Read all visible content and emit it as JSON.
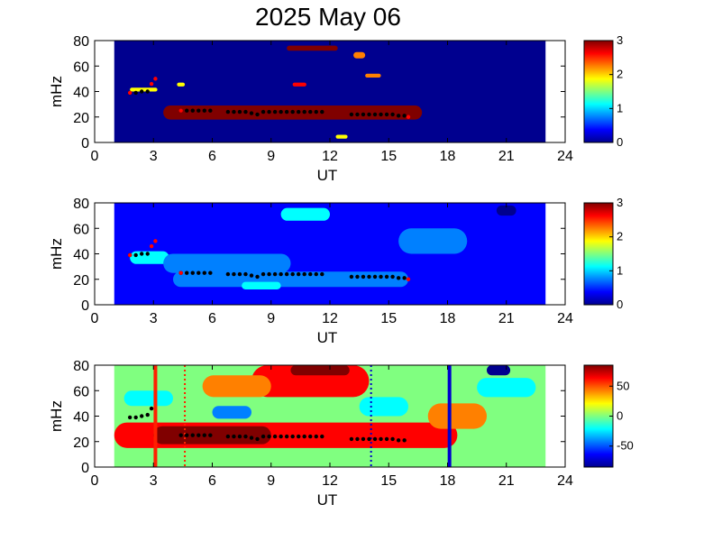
{
  "title": "2025 May 06",
  "colormap": [
    "#00008f",
    "#0000ff",
    "#0080ff",
    "#00ffff",
    "#80ff80",
    "#ffff00",
    "#ff8000",
    "#ff0000",
    "#800000"
  ],
  "chart_data": [
    {
      "type": "heatmap",
      "name": "panel-1",
      "title": "",
      "xlabel": "UT",
      "ylabel": "mHz",
      "xlim": [
        0,
        24
      ],
      "ylim": [
        0,
        80
      ],
      "xticks": [
        "0",
        "3",
        "6",
        "9",
        "12",
        "15",
        "18",
        "21",
        "24"
      ],
      "yticks": [
        "0",
        "20",
        "40",
        "60",
        "80"
      ],
      "data_range": [
        1,
        23
      ],
      "background_value": 0.15,
      "clim": [
        0,
        3
      ],
      "colorbar_ticks": [
        "0",
        "1",
        "2",
        "3"
      ],
      "blobs": [
        {
          "t0": 3.5,
          "t1": 16.7,
          "f0": 18,
          "f1": 29,
          "value": 3.0
        },
        {
          "t0": 9.8,
          "t1": 12.4,
          "f0": 72,
          "f1": 76,
          "value": 3.0
        },
        {
          "t0": 10.1,
          "t1": 10.8,
          "f0": 44,
          "f1": 47,
          "value": 2.7
        },
        {
          "t0": 1.8,
          "t1": 3.2,
          "f0": 40,
          "f1": 43,
          "value": 2.0
        },
        {
          "t0": 13.8,
          "t1": 14.6,
          "f0": 51,
          "f1": 54,
          "value": 2.3
        },
        {
          "t0": 12.3,
          "t1": 12.9,
          "f0": 3,
          "f1": 6,
          "value": 2.0
        },
        {
          "t0": 13.2,
          "t1": 13.8,
          "f0": 66,
          "f1": 71,
          "value": 2.2
        },
        {
          "t0": 4.2,
          "t1": 4.6,
          "f0": 44,
          "f1": 47,
          "value": 1.7
        }
      ],
      "peaks": {
        "black": [
          [
            1.8,
            39
          ],
          [
            2.1,
            39
          ],
          [
            2.4,
            40
          ],
          [
            2.7,
            40
          ],
          [
            4.4,
            25
          ],
          [
            4.7,
            25
          ],
          [
            5.0,
            25
          ],
          [
            5.3,
            25
          ],
          [
            5.6,
            25
          ],
          [
            5.9,
            25
          ],
          [
            6.8,
            24
          ],
          [
            7.1,
            24
          ],
          [
            7.4,
            24
          ],
          [
            7.7,
            24
          ],
          [
            8.0,
            23
          ],
          [
            8.3,
            22
          ],
          [
            8.6,
            24
          ],
          [
            8.9,
            24
          ],
          [
            9.2,
            24
          ],
          [
            9.5,
            24
          ],
          [
            9.8,
            24
          ],
          [
            10.1,
            24
          ],
          [
            10.4,
            24
          ],
          [
            10.7,
            24
          ],
          [
            11.0,
            24
          ],
          [
            11.3,
            24
          ],
          [
            11.6,
            24
          ],
          [
            13.1,
            22
          ],
          [
            13.4,
            22
          ],
          [
            13.7,
            22
          ],
          [
            14.0,
            22
          ],
          [
            14.3,
            22
          ],
          [
            14.6,
            22
          ],
          [
            14.9,
            22
          ],
          [
            15.2,
            22
          ],
          [
            15.5,
            21
          ],
          [
            15.8,
            21
          ]
        ],
        "red": [
          [
            1.8,
            39
          ],
          [
            2.9,
            46
          ],
          [
            3.1,
            50
          ],
          [
            4.4,
            25
          ],
          [
            16.0,
            20
          ]
        ]
      }
    },
    {
      "type": "heatmap",
      "name": "panel-2",
      "title": "",
      "xlabel": "UT",
      "ylabel": "mHz",
      "xlim": [
        0,
        24
      ],
      "ylim": [
        0,
        80
      ],
      "xticks": [
        "0",
        "3",
        "6",
        "9",
        "12",
        "15",
        "18",
        "21",
        "24"
      ],
      "yticks": [
        "0",
        "20",
        "40",
        "60",
        "80"
      ],
      "data_range": [
        1,
        23
      ],
      "background_value": 0.45,
      "clim": [
        0,
        3
      ],
      "colorbar_ticks": [
        "0",
        "1",
        "2",
        "3"
      ],
      "blobs": [
        {
          "t0": 9.5,
          "t1": 12.0,
          "f0": 66,
          "f1": 76,
          "value": 1.3
        },
        {
          "t0": 1.8,
          "t1": 3.8,
          "f0": 32,
          "f1": 42,
          "value": 1.2
        },
        {
          "t0": 3.5,
          "t1": 10.0,
          "f0": 25,
          "f1": 40,
          "value": 0.85
        },
        {
          "t0": 4.0,
          "t1": 16.0,
          "f0": 14,
          "f1": 26,
          "value": 0.9
        },
        {
          "t0": 7.5,
          "t1": 9.5,
          "f0": 12,
          "f1": 18,
          "value": 1.1
        },
        {
          "t0": 20.5,
          "t1": 21.5,
          "f0": 70,
          "f1": 78,
          "value": 0.1
        },
        {
          "t0": 15.5,
          "t1": 19.0,
          "f0": 40,
          "f1": 60,
          "value": 0.7
        }
      ],
      "peaks": {
        "black": [
          [
            1.8,
            39
          ],
          [
            2.1,
            39
          ],
          [
            2.4,
            40
          ],
          [
            2.7,
            40
          ],
          [
            4.4,
            25
          ],
          [
            4.7,
            25
          ],
          [
            5.0,
            25
          ],
          [
            5.3,
            25
          ],
          [
            5.6,
            25
          ],
          [
            5.9,
            25
          ],
          [
            6.8,
            24
          ],
          [
            7.1,
            24
          ],
          [
            7.4,
            24
          ],
          [
            7.7,
            24
          ],
          [
            8.0,
            23
          ],
          [
            8.3,
            22
          ],
          [
            8.6,
            24
          ],
          [
            8.9,
            24
          ],
          [
            9.2,
            24
          ],
          [
            9.5,
            24
          ],
          [
            9.8,
            24
          ],
          [
            10.1,
            24
          ],
          [
            10.4,
            24
          ],
          [
            10.7,
            24
          ],
          [
            11.0,
            24
          ],
          [
            11.3,
            24
          ],
          [
            11.6,
            24
          ],
          [
            13.1,
            22
          ],
          [
            13.4,
            22
          ],
          [
            13.7,
            22
          ],
          [
            14.0,
            22
          ],
          [
            14.3,
            22
          ],
          [
            14.6,
            22
          ],
          [
            14.9,
            22
          ],
          [
            15.2,
            22
          ],
          [
            15.5,
            21
          ],
          [
            15.8,
            21
          ]
        ],
        "red": [
          [
            1.8,
            39
          ],
          [
            2.9,
            46
          ],
          [
            3.1,
            50
          ],
          [
            4.4,
            25
          ],
          [
            16.0,
            20
          ]
        ]
      }
    },
    {
      "type": "heatmap",
      "name": "panel-3",
      "title": "",
      "xlabel": "UT",
      "ylabel": "mHz",
      "xlim": [
        0,
        24
      ],
      "ylim": [
        0,
        80
      ],
      "xticks": [
        "0",
        "3",
        "6",
        "9",
        "12",
        "15",
        "18",
        "21",
        "24"
      ],
      "yticks": [
        "0",
        "20",
        "40",
        "60",
        "80"
      ],
      "data_range": [
        1,
        23
      ],
      "background_value": 5,
      "clim": [
        -85,
        85
      ],
      "colorbar_ticks": [
        "-50",
        "0",
        "50"
      ],
      "colorbar_tick_values": [
        -50,
        0,
        50
      ],
      "blobs": [
        {
          "t0": 1.0,
          "t1": 18.5,
          "f0": 15,
          "f1": 35,
          "value": 65
        },
        {
          "t0": 3.0,
          "t1": 9.0,
          "f0": 18,
          "f1": 32,
          "value": 85
        },
        {
          "t0": 8.0,
          "t1": 14.0,
          "f0": 55,
          "f1": 80,
          "value": 60
        },
        {
          "t0": 10.0,
          "t1": 13.0,
          "f0": 72,
          "f1": 80,
          "value": 85
        },
        {
          "t0": 5.5,
          "t1": 9.0,
          "f0": 55,
          "f1": 72,
          "value": 50
        },
        {
          "t0": 1.5,
          "t1": 4.0,
          "f0": 48,
          "f1": 60,
          "value": -30
        },
        {
          "t0": 6.0,
          "t1": 8.0,
          "f0": 38,
          "f1": 48,
          "value": -35
        },
        {
          "t0": 13.5,
          "t1": 16.0,
          "f0": 40,
          "f1": 55,
          "value": -25
        },
        {
          "t0": 17.0,
          "t1": 20.0,
          "f0": 30,
          "f1": 50,
          "value": 35
        },
        {
          "t0": 19.5,
          "t1": 22.5,
          "f0": 55,
          "f1": 70,
          "value": -30
        },
        {
          "t0": 20.0,
          "t1": 21.2,
          "f0": 72,
          "f1": 80,
          "value": -85
        }
      ],
      "vlines_solid": [
        {
          "x": 3.1,
          "color": "#ff2000"
        },
        {
          "x": 18.1,
          "color": "#0000cc"
        }
      ],
      "vlines_dotted": [
        {
          "x": 4.6,
          "color": "#ff2000"
        },
        {
          "x": 14.1,
          "color": "#0000cc"
        }
      ],
      "peaks": {
        "black": [
          [
            1.8,
            39
          ],
          [
            2.1,
            39
          ],
          [
            2.4,
            40
          ],
          [
            2.7,
            41
          ],
          [
            2.9,
            46
          ],
          [
            4.4,
            25
          ],
          [
            4.7,
            25
          ],
          [
            5.0,
            25
          ],
          [
            5.3,
            25
          ],
          [
            5.6,
            25
          ],
          [
            5.9,
            25
          ],
          [
            6.8,
            24
          ],
          [
            7.1,
            24
          ],
          [
            7.4,
            24
          ],
          [
            7.7,
            24
          ],
          [
            8.0,
            23
          ],
          [
            8.3,
            22
          ],
          [
            8.6,
            24
          ],
          [
            8.9,
            24
          ],
          [
            9.2,
            24
          ],
          [
            9.5,
            24
          ],
          [
            9.8,
            24
          ],
          [
            10.1,
            24
          ],
          [
            10.4,
            24
          ],
          [
            10.7,
            24
          ],
          [
            11.0,
            24
          ],
          [
            11.3,
            24
          ],
          [
            11.6,
            24
          ],
          [
            13.1,
            22
          ],
          [
            13.4,
            22
          ],
          [
            13.7,
            22
          ],
          [
            14.0,
            22
          ],
          [
            14.3,
            22
          ],
          [
            14.6,
            22
          ],
          [
            14.9,
            22
          ],
          [
            15.2,
            22
          ],
          [
            15.5,
            21
          ],
          [
            15.8,
            21
          ]
        ],
        "red": []
      }
    }
  ]
}
